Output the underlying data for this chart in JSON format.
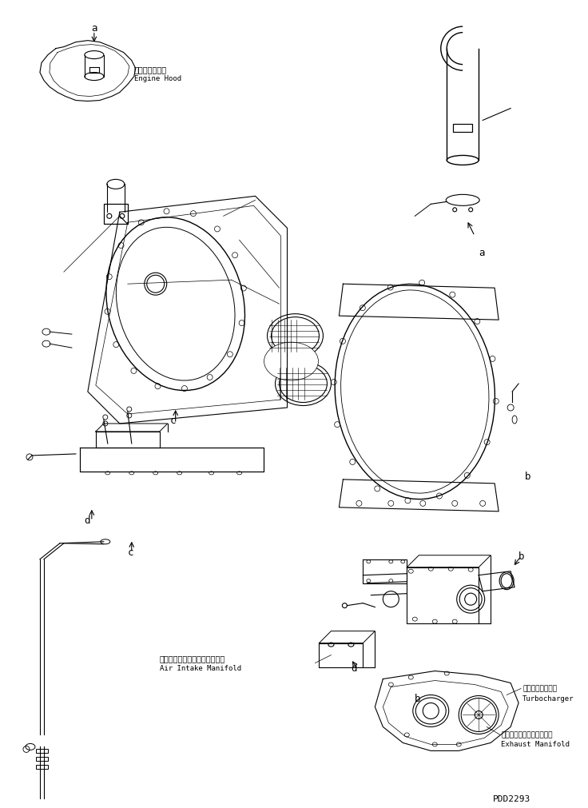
{
  "bg_color": "#ffffff",
  "line_color": "#000000",
  "fig_width": 7.36,
  "fig_height": 10.11,
  "dpi": 100,
  "labels": {
    "engine_hood_jp": "エンジンフード",
    "engine_hood_en": "Engine Hood",
    "air_intake_jp": "エアーインテークマニホールド",
    "air_intake_en": "Air Intake Manifold",
    "turbocharger_jp": "ターボチャージャ",
    "turbocharger_en": "Turbocharger",
    "exhaust_manifold_jp": "エキゾーストマニホールド",
    "exhaust_manifold_en": "Exhaust Manifold",
    "part_num": "PDD2293",
    "label_a": "a",
    "label_b": "b",
    "label_c": "c",
    "label_d": "d"
  }
}
